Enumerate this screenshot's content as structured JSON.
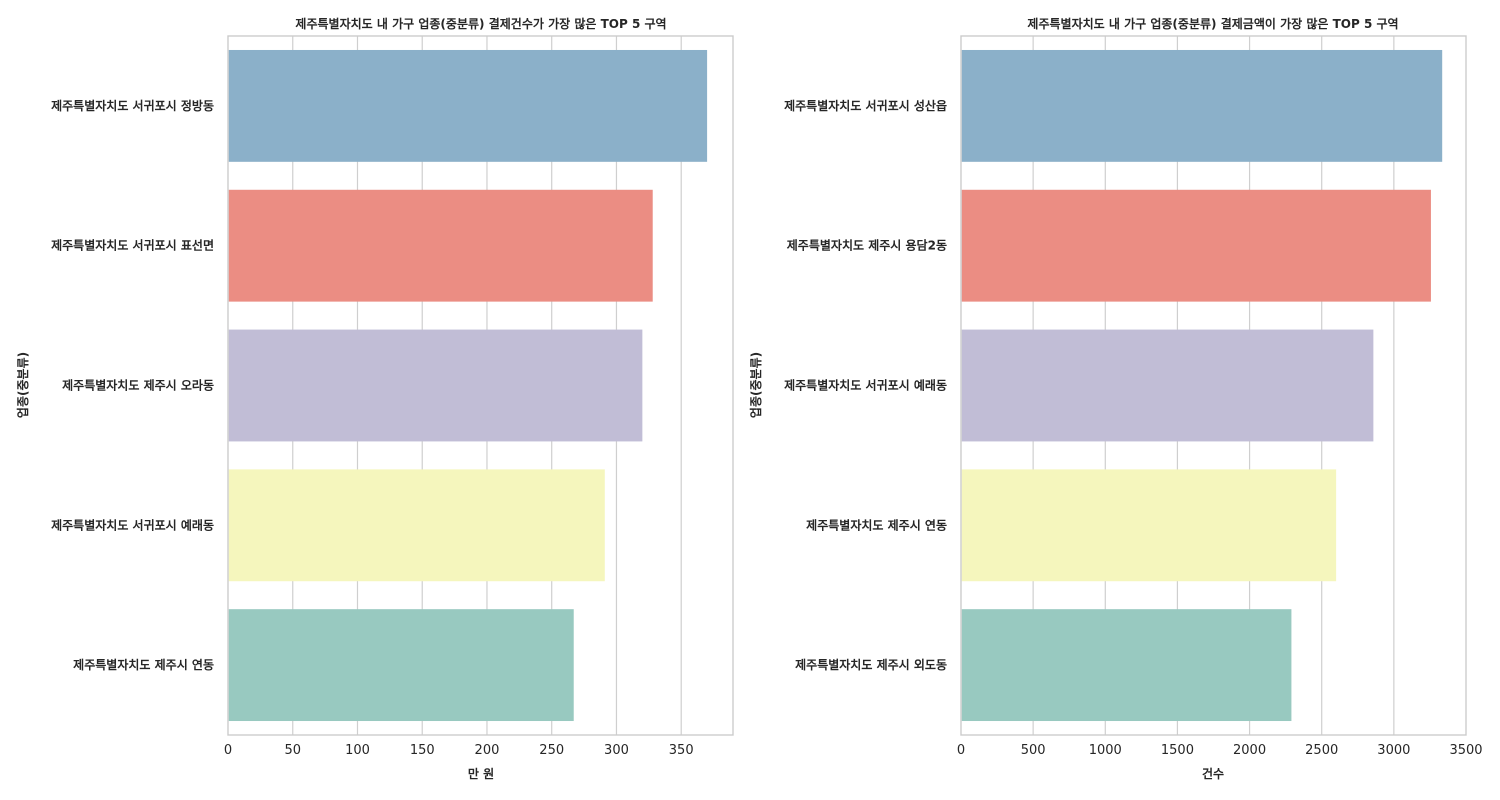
{
  "chart_data": [
    {
      "type": "bar",
      "orientation": "horizontal",
      "title": "제주특별자치도 내 가구 업종(중분류) 결제건수가 가장 많은 TOP 5 구역",
      "xlabel": "만 원",
      "ylabel": "업종(중분류)",
      "xlim": [
        0,
        390
      ],
      "xticks": [
        0,
        50,
        100,
        150,
        200,
        250,
        300,
        350
      ],
      "grid": "vertical",
      "categories": [
        "제주특별자치도 서귀포시 정방동",
        "제주특별자치도 서귀포시 표선면",
        "제주특별자치도 제주시 오라동",
        "제주특별자치도 서귀포시 예래동",
        "제주특별자치도 제주시 연동"
      ],
      "values": [
        370,
        328,
        320,
        291,
        267
      ],
      "colors": [
        "#8bb0c9",
        "#eb8d83",
        "#c1bdd6",
        "#f5f6bd",
        "#98c9c0"
      ]
    },
    {
      "type": "bar",
      "orientation": "horizontal",
      "title": "제주특별자치도 내 가구 업종(중분류) 결제금액이 가장 많은 TOP 5 구역",
      "xlabel": "건수",
      "ylabel": "업종(중분류)",
      "xlim": [
        0,
        3500
      ],
      "xticks": [
        0,
        500,
        1000,
        1500,
        2000,
        2500,
        3000,
        3500
      ],
      "grid": "vertical",
      "categories": [
        "제주특별자치도 서귀포시 성산읍",
        "제주특별자치도 제주시 용담2동",
        "제주특별자치도 서귀포시 예래동",
        "제주특별자치도 제주시 연동",
        "제주특별자치도 제주시 외도동"
      ],
      "values": [
        3335,
        3257,
        2858,
        2600,
        2290
      ],
      "colors": [
        "#8bb0c9",
        "#eb8d83",
        "#c1bdd6",
        "#f5f6bd",
        "#98c9c0"
      ]
    }
  ]
}
